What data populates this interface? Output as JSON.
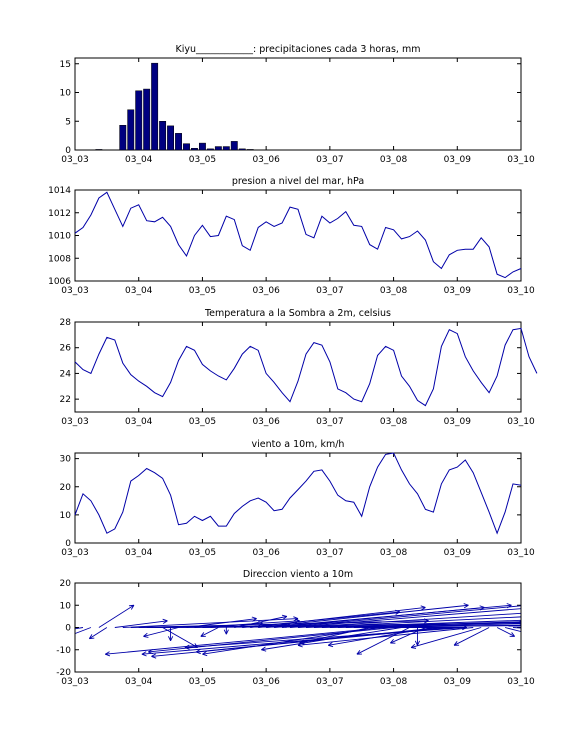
{
  "colors": {
    "series": "#0000A8",
    "bar": "#000080",
    "axis": "#000000",
    "background": "#ffffff"
  },
  "x_tick_labels": [
    "03_03",
    "03_04",
    "03_05",
    "03_06",
    "03_07",
    "03_08",
    "03_09",
    "03_10"
  ],
  "chart_data": [
    {
      "type": "bar",
      "title": "Kiyu____________: precipitaciones cada 3 horas, mm",
      "xlabel": "",
      "ylabel": "",
      "xlim": [
        0,
        56
      ],
      "ylim": [
        0,
        16
      ],
      "yticks": [
        0,
        5,
        10,
        15
      ],
      "x": [
        3,
        6,
        7,
        8,
        9,
        10,
        11,
        12,
        13,
        14,
        15,
        16,
        17,
        18,
        19,
        20,
        21,
        22
      ],
      "values": [
        0.1,
        4.3,
        7.0,
        10.3,
        10.6,
        15.1,
        5.0,
        4.2,
        2.9,
        1.1,
        0.3,
        1.2,
        0.2,
        0.6,
        0.6,
        1.5,
        0.2,
        0.1
      ]
    },
    {
      "type": "line",
      "title": "presion a nivel del mar, hPa",
      "xlabel": "",
      "ylabel": "",
      "xlim": [
        0,
        56
      ],
      "ylim": [
        1006,
        1014
      ],
      "yticks": [
        1006,
        1008,
        1010,
        1012,
        1014
      ],
      "values": [
        1010.2,
        1010.7,
        1011.8,
        1013.3,
        1013.8,
        1012.3,
        1010.8,
        1012.4,
        1012.7,
        1011.3,
        1011.2,
        1011.6,
        1010.8,
        1009.2,
        1008.2,
        1010.0,
        1010.9,
        1009.9,
        1010.0,
        1011.7,
        1011.4,
        1009.1,
        1008.7,
        1010.7,
        1011.2,
        1010.8,
        1011.1,
        1012.5,
        1012.3,
        1010.1,
        1009.8,
        1011.7,
        1011.1,
        1011.5,
        1012.1,
        1010.9,
        1010.8,
        1009.2,
        1008.8,
        1010.7,
        1010.5,
        1009.7,
        1009.9,
        1010.4,
        1009.6,
        1007.7,
        1007.1,
        1008.3,
        1008.7,
        1008.8,
        1008.8,
        1009.8,
        1009.0,
        1006.6,
        1006.3,
        1006.8,
        1007.1
      ]
    },
    {
      "type": "line",
      "title": "Temperatura a la Sombra a 2m, celsius",
      "xlabel": "",
      "ylabel": "",
      "xlim": [
        0,
        56
      ],
      "ylim": [
        21,
        28
      ],
      "yticks": [
        22,
        24,
        26,
        28
      ],
      "values": [
        24.9,
        24.3,
        24.0,
        25.5,
        26.8,
        26.6,
        24.8,
        23.9,
        23.4,
        23.0,
        22.5,
        22.2,
        23.3,
        25.0,
        26.1,
        25.8,
        24.7,
        24.2,
        23.8,
        23.5,
        24.4,
        25.5,
        26.1,
        25.8,
        24.0,
        23.3,
        22.5,
        21.8,
        23.4,
        25.5,
        26.4,
        26.2,
        24.9,
        22.8,
        22.5,
        22.0,
        21.8,
        23.2,
        25.4,
        26.1,
        25.8,
        23.8,
        23.0,
        21.9,
        21.5,
        22.8,
        26.1,
        27.4,
        27.1,
        25.3,
        24.2,
        23.3,
        22.5,
        23.8,
        26.2,
        27.4,
        27.5,
        25.3,
        24.0
      ]
    },
    {
      "type": "line",
      "title": "viento a 10m, km/h",
      "xlabel": "",
      "ylabel": "",
      "xlim": [
        0,
        56
      ],
      "ylim": [
        0,
        32
      ],
      "yticks": [
        0,
        10,
        20,
        30
      ],
      "values": [
        10,
        17.5,
        15,
        10,
        3.5,
        5,
        11,
        22,
        24,
        26.5,
        25,
        23,
        17,
        6.5,
        7,
        9.5,
        8,
        9.5,
        6,
        6,
        10.5,
        13,
        15,
        16,
        14.5,
        11.5,
        12,
        16,
        19,
        22,
        25.5,
        26,
        22,
        17,
        15,
        14.5,
        9.5,
        20,
        27,
        31.5,
        32,
        26,
        21,
        17.5,
        12,
        11,
        21,
        26,
        27,
        29.5,
        25,
        18,
        11,
        3.5,
        11,
        21,
        20.5
      ]
    },
    {
      "type": "scatter",
      "title": "Direccion viento a 10m",
      "xlabel": "",
      "ylabel": "",
      "xlim": [
        0,
        56
      ],
      "ylim": [
        -20,
        20
      ],
      "yticks": [
        -20,
        -10,
        0,
        10,
        20
      ],
      "x": [
        0,
        1,
        2,
        3,
        4,
        5,
        6,
        7,
        8,
        9,
        10,
        11,
        12,
        13,
        14,
        15,
        16,
        17,
        18,
        19,
        20,
        21,
        22,
        23,
        24,
        25,
        26,
        27,
        28,
        29,
        30,
        31,
        32,
        33,
        34,
        35,
        36,
        37,
        38,
        39,
        40,
        41,
        42,
        43,
        44,
        45,
        46,
        47,
        48,
        49,
        50,
        51,
        52,
        53,
        54,
        55,
        56
      ],
      "u": [
        -4,
        -9,
        -3,
        2,
        -1,
        3,
        10,
        17,
        22,
        24,
        25,
        2,
        0,
        -2,
        4,
        6,
        5,
        3,
        -1,
        0,
        3,
        9,
        10,
        12,
        14,
        12,
        14,
        14,
        16,
        18,
        22,
        24,
        20,
        16,
        12,
        10,
        6,
        -4,
        -10,
        -16,
        -14,
        -8,
        -3,
        0,
        -2,
        -6,
        -14,
        -17,
        -18,
        -16,
        -10,
        -4,
        -2,
        1,
        3,
        10,
        16
      ],
      "v": [
        -10,
        -12,
        -9,
        10,
        -5,
        3,
        4,
        3,
        2,
        1,
        1,
        -9,
        -6,
        -4,
        4,
        3,
        1,
        2,
        -4,
        -3,
        5,
        7,
        9,
        10,
        10,
        9,
        10,
        9,
        8,
        7,
        6,
        5,
        4,
        4,
        2,
        1,
        0,
        -7,
        -12,
        -12,
        -11,
        -10,
        -12,
        -8,
        -7,
        -8,
        -11,
        -13,
        -12,
        -9,
        -8,
        -9,
        -8,
        -4,
        -6,
        -5,
        -3
      ]
    }
  ]
}
